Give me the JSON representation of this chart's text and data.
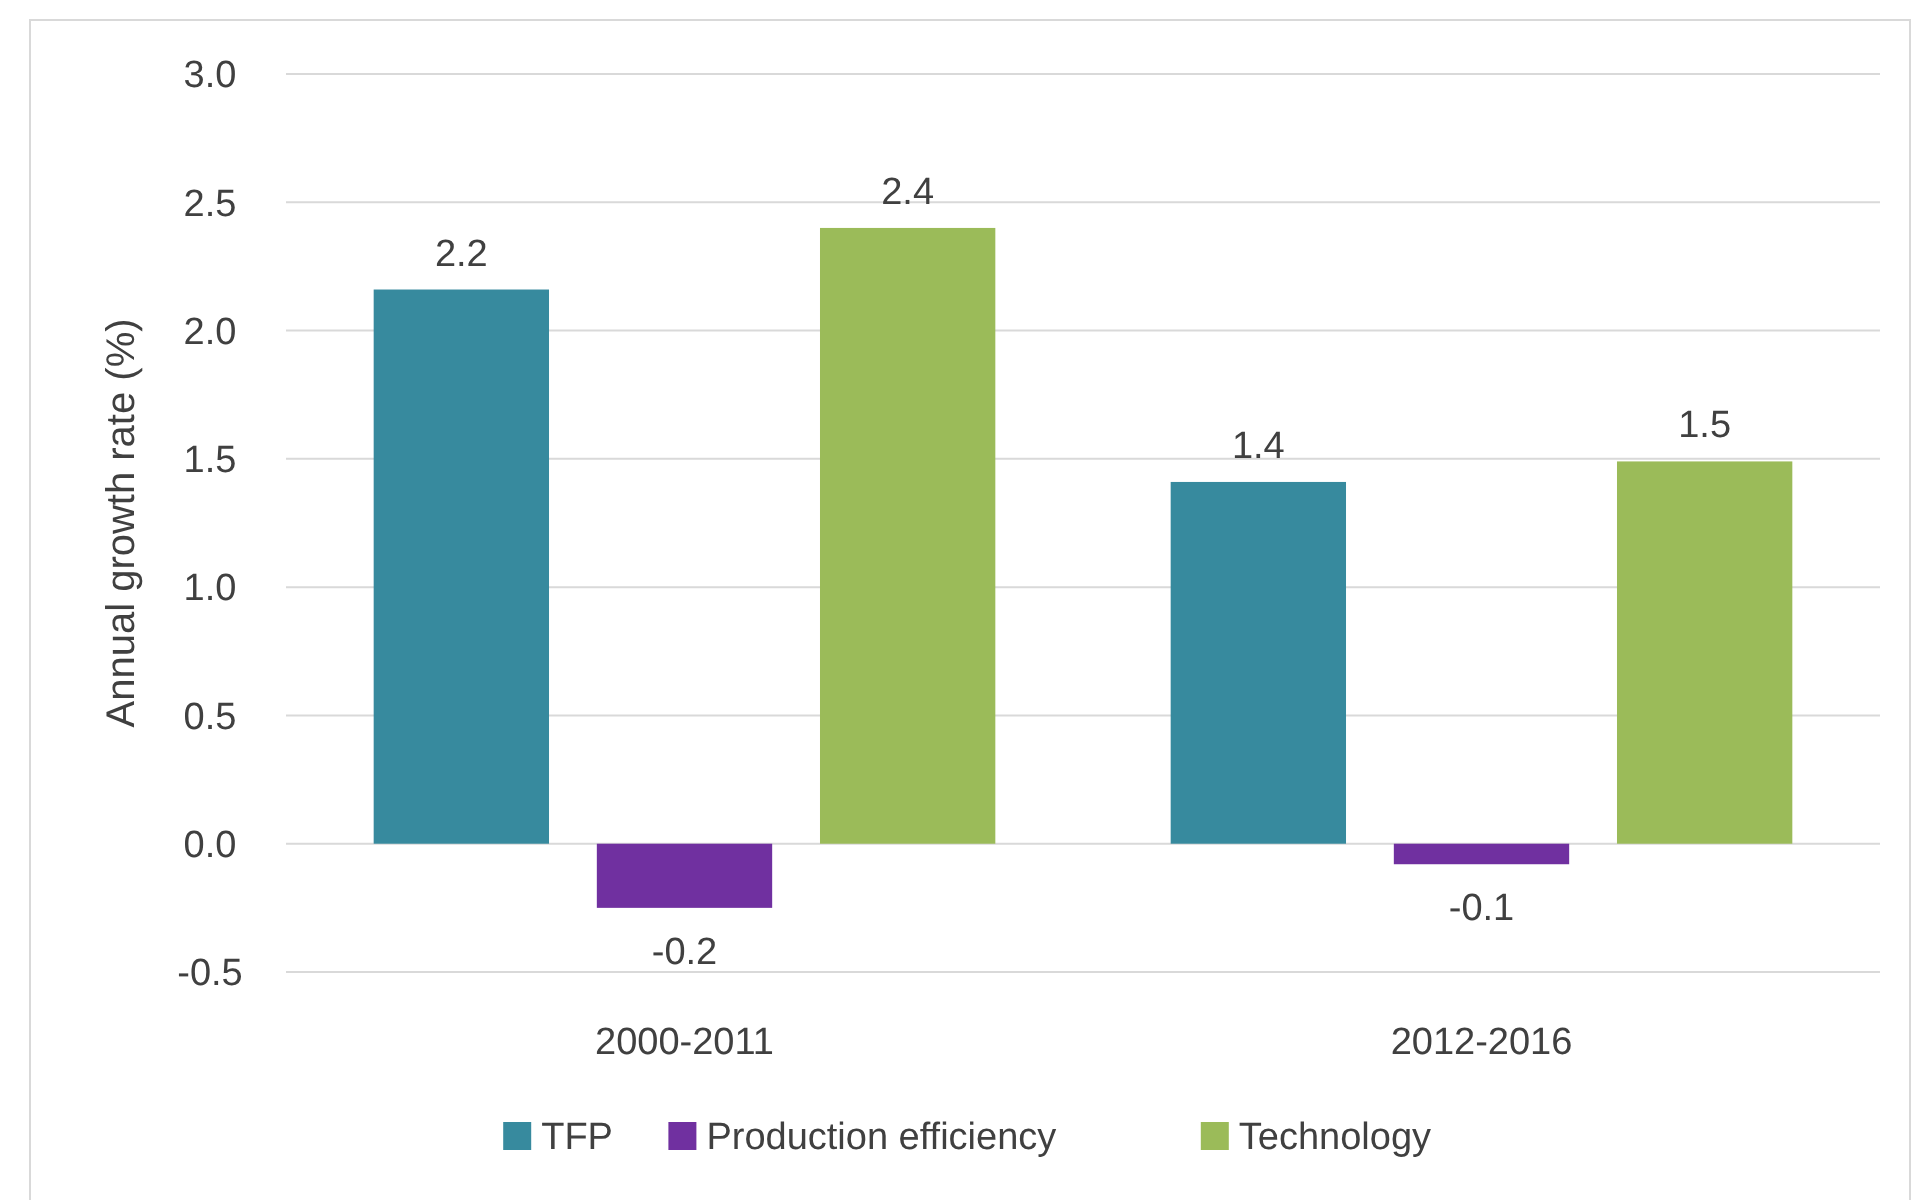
{
  "chart_data": {
    "type": "bar",
    "ylabel": "Annual growth rate (%)",
    "categories": [
      "2000-2011",
      "2012-2016"
    ],
    "series": [
      {
        "name": "TFP",
        "color": "#378a9e",
        "values": [
          2.16,
          1.41
        ],
        "value_labels": [
          "2.2",
          "1.4"
        ]
      },
      {
        "name": "Production efficiency",
        "color": "#7030a0",
        "values": [
          -0.25,
          -0.08
        ],
        "value_labels": [
          "-0.2",
          "-0.1"
        ]
      },
      {
        "name": "Technology",
        "color": "#9bbb59",
        "values": [
          2.4,
          1.49
        ],
        "value_labels": [
          "2.4",
          "1.5"
        ]
      }
    ],
    "ylim": [
      -0.5,
      3.0
    ],
    "yticks": [
      {
        "value": -0.5,
        "label": "-0.5"
      },
      {
        "value": 0,
        "label": "0.0"
      },
      {
        "value": 0.5,
        "label": "0.5"
      },
      {
        "value": 1,
        "label": "1.0"
      },
      {
        "value": 1.5,
        "label": "1.5"
      },
      {
        "value": 2,
        "label": "2.0"
      },
      {
        "value": 2.5,
        "label": "2.5"
      },
      {
        "value": 3,
        "label": "3.0"
      }
    ],
    "grid": "y",
    "legend": "bottom"
  }
}
